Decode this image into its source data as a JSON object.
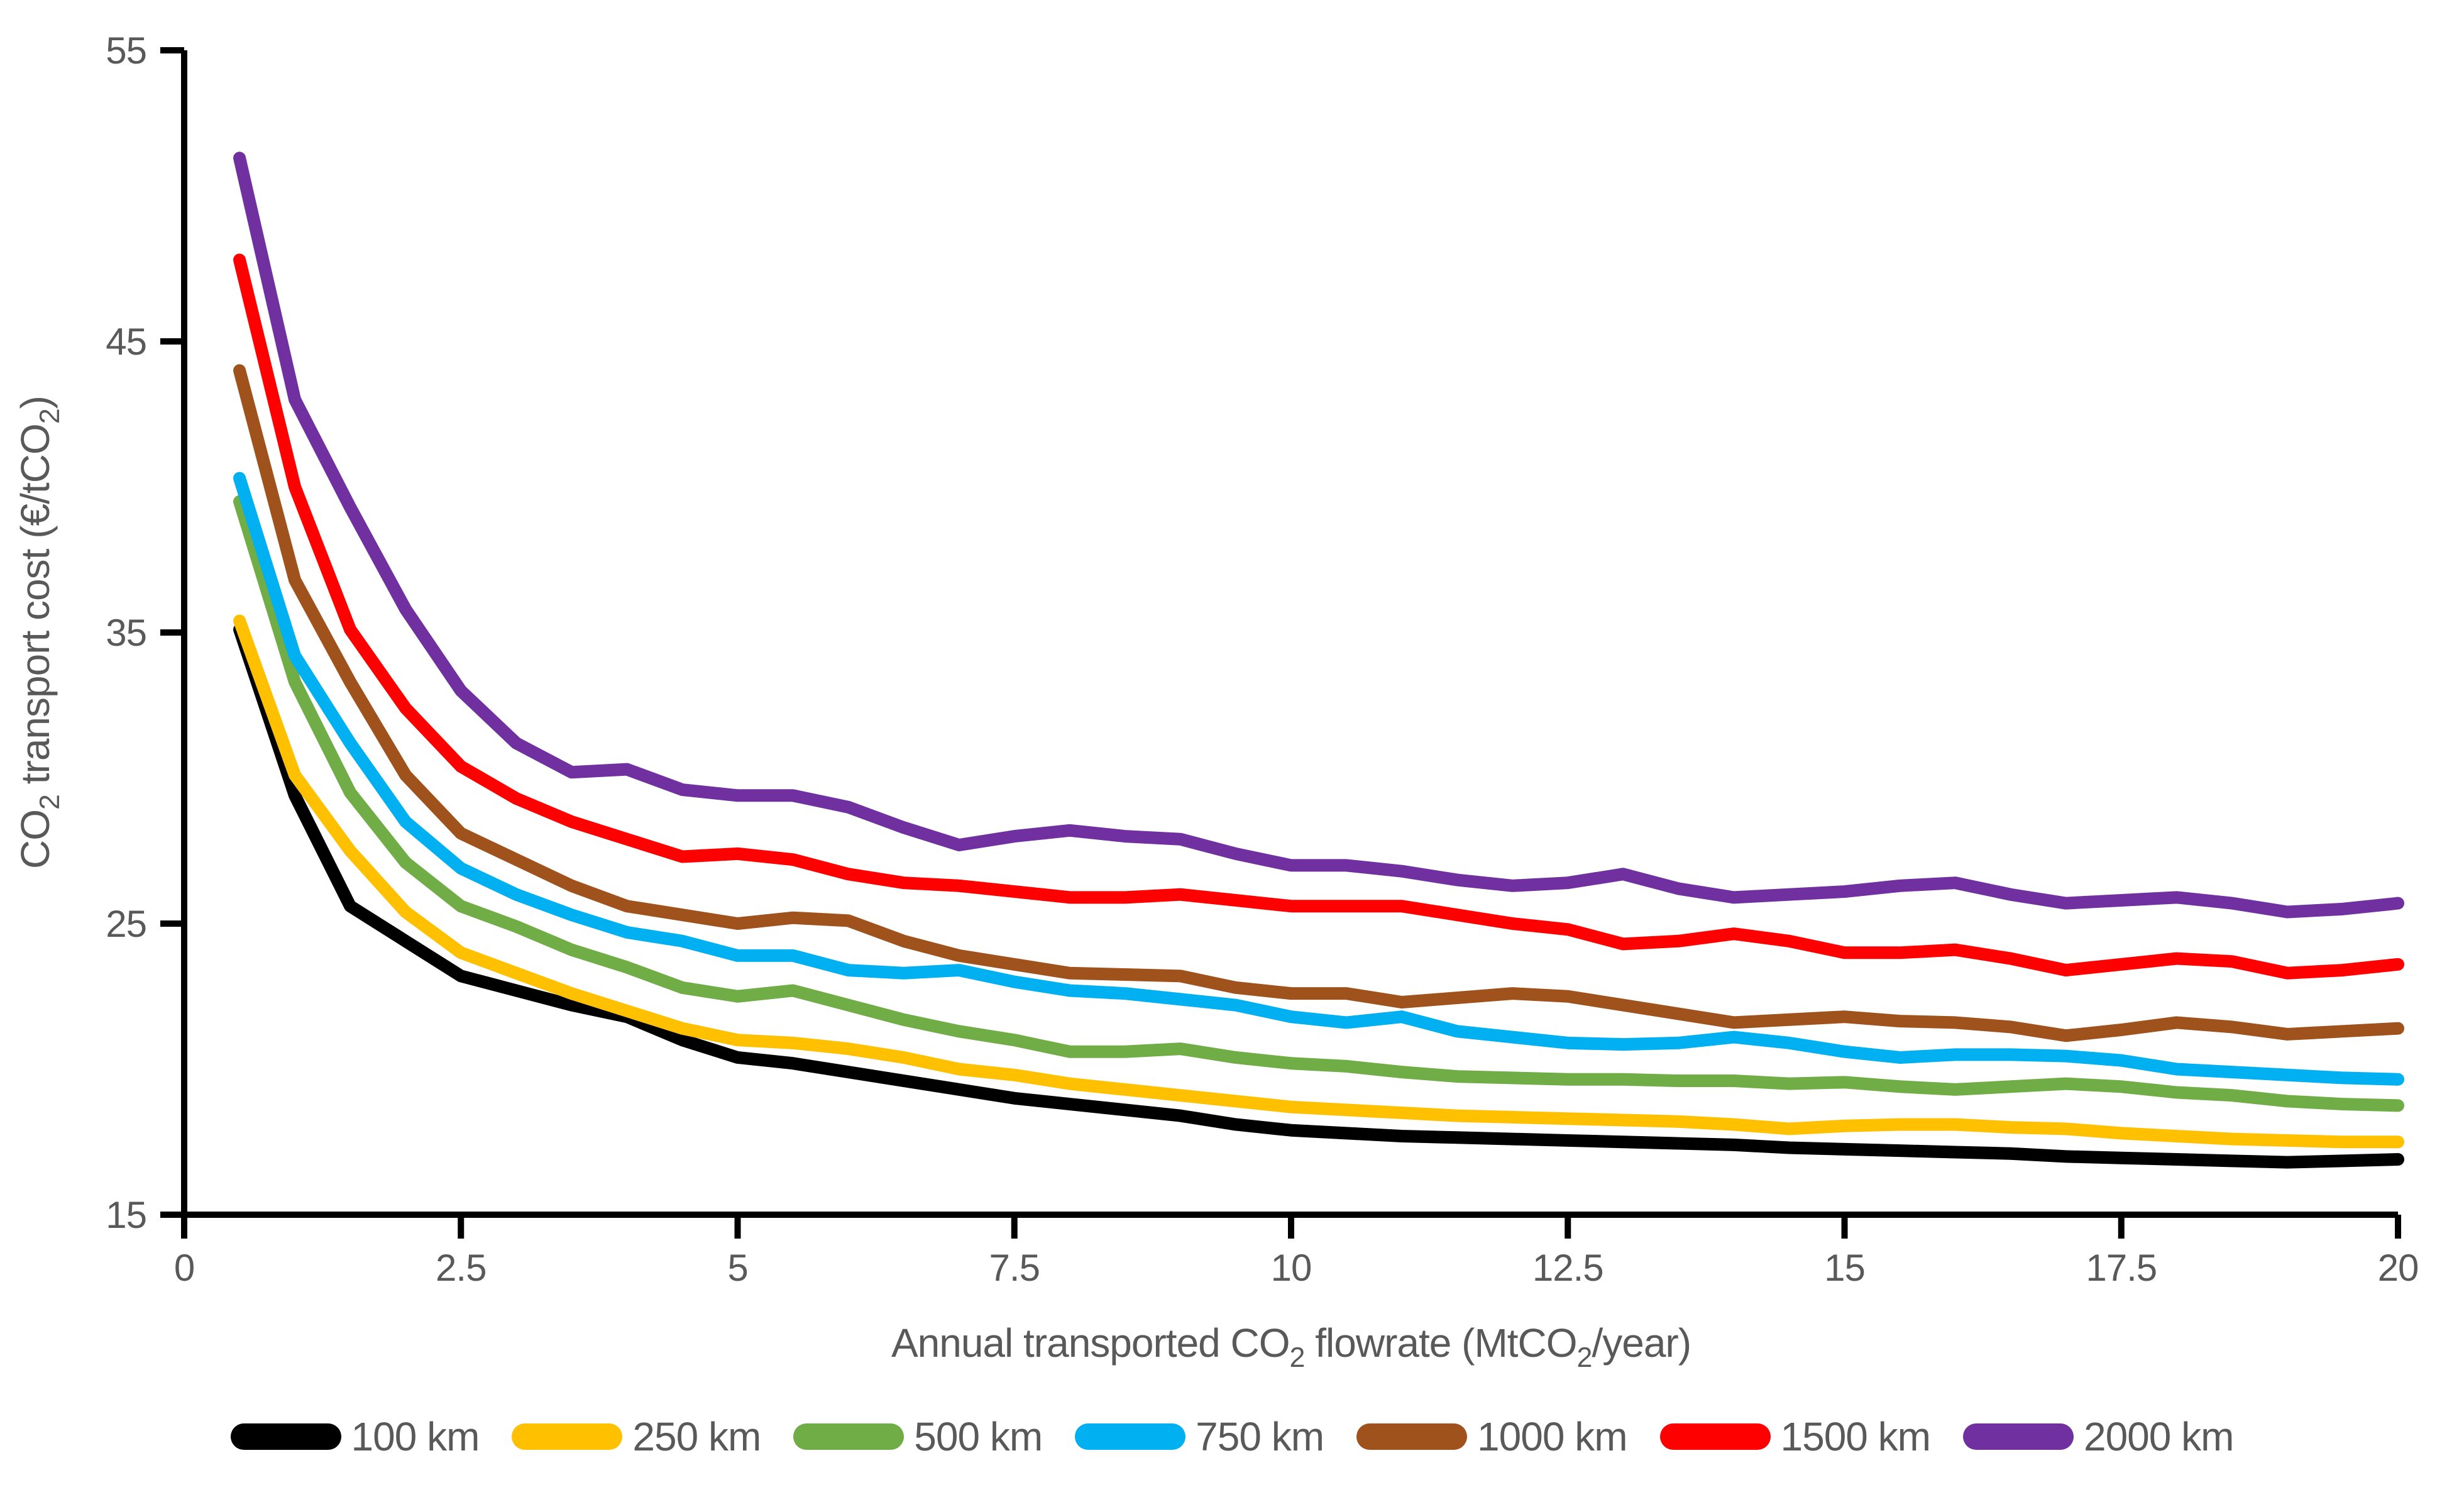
{
  "chart_data": {
    "type": "line",
    "title": "",
    "xlabel_parts": [
      {
        "t": "Annual transported CO",
        "sub": false
      },
      {
        "t": "2",
        "sub": true
      },
      {
        "t": " flowrate (MtCO",
        "sub": false
      },
      {
        "t": "2",
        "sub": true
      },
      {
        "t": "/year)",
        "sub": false
      }
    ],
    "ylabel_parts": [
      {
        "t": "CO",
        "sub": false
      },
      {
        "t": "2",
        "sub": true
      },
      {
        "t": " transport cost (€/tCO",
        "sub": false
      },
      {
        "t": "2",
        "sub": true
      },
      {
        "t": ")",
        "sub": false
      }
    ],
    "xlim": [
      0,
      20
    ],
    "ylim": [
      15,
      55
    ],
    "grid": false,
    "legend_position": "bottom",
    "axis_color": "#000000",
    "text_color": "#595959",
    "x_ticks": [
      {
        "label": "0",
        "value": 0
      },
      {
        "label": "2.5",
        "value": 2.5
      },
      {
        "label": "5",
        "value": 5
      },
      {
        "label": "7.5",
        "value": 7.5
      },
      {
        "label": "10",
        "value": 10
      },
      {
        "label": "12.5",
        "value": 12.5
      },
      {
        "label": "15",
        "value": 15
      },
      {
        "label": "17.5",
        "value": 17.5
      },
      {
        "label": "20",
        "value": 20
      }
    ],
    "y_ticks": [
      {
        "label": "15",
        "value": 15
      },
      {
        "label": "25",
        "value": 25
      },
      {
        "label": "35",
        "value": 35
      },
      {
        "label": "45",
        "value": 45
      },
      {
        "label": "55",
        "value": 55
      }
    ],
    "x": [
      0.5,
      1,
      1.5,
      2,
      2.5,
      3,
      3.5,
      4,
      4.5,
      5,
      5.5,
      6,
      6.5,
      7,
      7.5,
      8,
      8.5,
      9,
      9.5,
      10,
      10.5,
      11,
      11.5,
      12,
      12.5,
      13,
      13.5,
      14,
      14.5,
      15,
      15.5,
      16,
      16.5,
      17,
      17.5,
      18,
      18.5,
      19,
      19.5,
      20
    ],
    "series": [
      {
        "name": "100 km",
        "color": "#000000",
        "values": [
          35.1,
          29.4,
          25.6,
          24.4,
          23.2,
          22.7,
          22.2,
          21.8,
          21.0,
          20.4,
          20.2,
          19.9,
          19.6,
          19.3,
          19.0,
          18.8,
          18.6,
          18.4,
          18.1,
          17.9,
          17.8,
          17.7,
          17.65,
          17.6,
          17.55,
          17.5,
          17.45,
          17.4,
          17.3,
          17.25,
          17.2,
          17.15,
          17.1,
          17.0,
          16.95,
          16.9,
          16.85,
          16.8,
          16.85,
          16.9
        ]
      },
      {
        "name": "250 km",
        "color": "#FFC000",
        "values": [
          35.4,
          30.1,
          27.5,
          25.4,
          24.0,
          23.3,
          22.6,
          22.0,
          21.4,
          21.0,
          20.9,
          20.7,
          20.4,
          20.0,
          19.8,
          19.5,
          19.3,
          19.1,
          18.9,
          18.7,
          18.6,
          18.5,
          18.4,
          18.35,
          18.3,
          18.25,
          18.2,
          18.1,
          17.95,
          18.05,
          18.1,
          18.1,
          18.0,
          17.95,
          17.8,
          17.7,
          17.6,
          17.55,
          17.5,
          17.5
        ]
      },
      {
        "name": "500 km",
        "color": "#70AD47",
        "values": [
          39.5,
          33.3,
          29.5,
          27.1,
          25.6,
          24.9,
          24.1,
          23.5,
          22.8,
          22.5,
          22.7,
          22.2,
          21.7,
          21.3,
          21.0,
          20.6,
          20.6,
          20.7,
          20.4,
          20.2,
          20.1,
          19.9,
          19.75,
          19.7,
          19.65,
          19.65,
          19.6,
          19.6,
          19.5,
          19.55,
          19.4,
          19.3,
          19.4,
          19.5,
          19.4,
          19.2,
          19.1,
          18.9,
          18.8,
          18.75
        ]
      },
      {
        "name": "750 km",
        "color": "#00B0F0",
        "values": [
          40.3,
          34.2,
          31.2,
          28.5,
          26.9,
          26.0,
          25.3,
          24.7,
          24.4,
          23.9,
          23.9,
          23.4,
          23.3,
          23.4,
          23.0,
          22.7,
          22.6,
          22.4,
          22.2,
          21.8,
          21.6,
          21.8,
          21.3,
          21.1,
          20.9,
          20.85,
          20.9,
          21.1,
          20.9,
          20.6,
          20.4,
          20.5,
          20.5,
          20.45,
          20.3,
          20.0,
          19.9,
          19.8,
          19.7,
          19.65
        ]
      },
      {
        "name": "1000 km",
        "color": "#A0521D",
        "values": [
          44.0,
          36.8,
          33.3,
          30.1,
          28.1,
          27.2,
          26.3,
          25.6,
          25.3,
          25.0,
          25.2,
          25.1,
          24.4,
          23.9,
          23.6,
          23.3,
          23.25,
          23.2,
          22.8,
          22.6,
          22.6,
          22.3,
          22.45,
          22.6,
          22.5,
          22.2,
          21.9,
          21.6,
          21.7,
          21.8,
          21.65,
          21.6,
          21.45,
          21.15,
          21.35,
          21.6,
          21.45,
          21.2,
          21.3,
          21.4
        ]
      },
      {
        "name": "1500 km",
        "color": "#FF0000",
        "values": [
          47.8,
          40.0,
          35.1,
          32.4,
          30.4,
          29.3,
          28.5,
          27.9,
          27.3,
          27.4,
          27.2,
          26.7,
          26.4,
          26.3,
          26.1,
          25.9,
          25.9,
          26.0,
          25.8,
          25.6,
          25.6,
          25.6,
          25.3,
          25.0,
          24.8,
          24.3,
          24.4,
          24.65,
          24.4,
          24.0,
          24.0,
          24.1,
          23.8,
          23.4,
          23.6,
          23.8,
          23.7,
          23.3,
          23.4,
          23.6
        ]
      },
      {
        "name": "2000 km",
        "color": "#7030A0",
        "values": [
          51.3,
          43.0,
          39.3,
          35.8,
          33.0,
          31.2,
          30.2,
          30.3,
          29.6,
          29.4,
          29.4,
          29.0,
          28.3,
          27.7,
          28.0,
          28.2,
          28.0,
          27.9,
          27.4,
          27.0,
          27.0,
          26.8,
          26.5,
          26.3,
          26.4,
          26.7,
          26.2,
          25.9,
          26.0,
          26.1,
          26.3,
          26.4,
          26.0,
          25.7,
          25.8,
          25.9,
          25.7,
          25.4,
          25.5,
          25.7
        ]
      }
    ]
  }
}
